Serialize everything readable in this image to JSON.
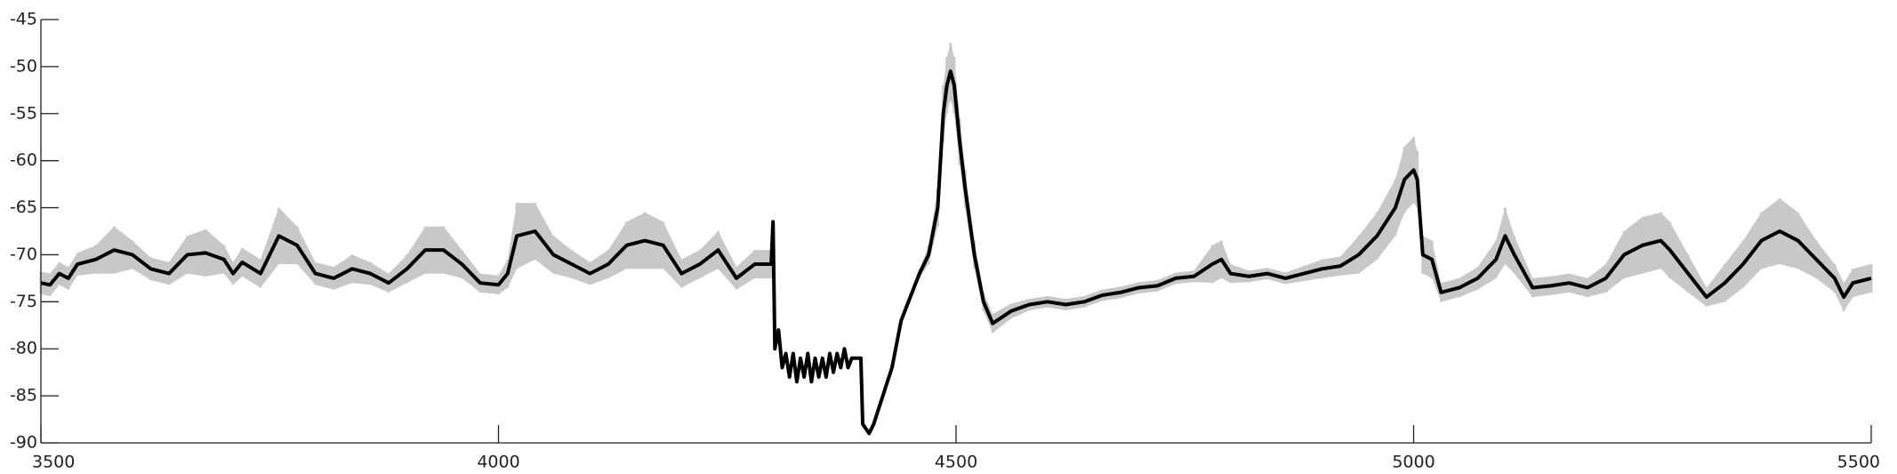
{
  "chart_data": {
    "type": "line",
    "x": [
      3500,
      3510,
      3520,
      3530,
      3540,
      3560,
      3580,
      3600,
      3620,
      3640,
      3660,
      3680,
      3700,
      3710,
      3720,
      3740,
      3760,
      3780,
      3800,
      3820,
      3840,
      3860,
      3880,
      3900,
      3920,
      3940,
      3960,
      3980,
      4000,
      4010,
      4020,
      4040,
      4060,
      4080,
      4100,
      4120,
      4140,
      4160,
      4180,
      4200,
      4220,
      4240,
      4260,
      4280,
      4298,
      4300,
      4302,
      4306,
      4310,
      4314,
      4318,
      4322,
      4326,
      4330,
      4334,
      4338,
      4342,
      4346,
      4350,
      4354,
      4358,
      4362,
      4366,
      4370,
      4374,
      4378,
      4382,
      4386,
      4396,
      4398,
      4405,
      4410,
      4420,
      4430,
      4440,
      4460,
      4470,
      4480,
      4486,
      4490,
      4494,
      4498,
      4504,
      4510,
      4520,
      4530,
      4540,
      4560,
      4580,
      4600,
      4620,
      4640,
      4660,
      4680,
      4700,
      4720,
      4740,
      4760,
      4780,
      4790,
      4800,
      4820,
      4840,
      4860,
      4880,
      4900,
      4920,
      4940,
      4960,
      4980,
      4990,
      5000,
      5004,
      5010,
      5020,
      5030,
      5050,
      5070,
      5090,
      5100,
      5110,
      5130,
      5150,
      5170,
      5190,
      5210,
      5230,
      5250,
      5270,
      5280,
      5300,
      5320,
      5340,
      5360,
      5380,
      5400,
      5420,
      5440,
      5460,
      5470,
      5480,
      5500
    ],
    "series": [
      {
        "color": "#000000",
        "band_color": "#c8c8c8",
        "values": [
          -73,
          -73.2,
          -72,
          -72.5,
          -71,
          -70.5,
          -69.5,
          -70,
          -71.5,
          -72,
          -70,
          -69.8,
          -70.5,
          -72,
          -70.8,
          -72,
          -68,
          -69,
          -72,
          -72.5,
          -71.5,
          -72,
          -73,
          -71.5,
          -69.5,
          -69.5,
          -71,
          -73,
          -73.2,
          -72,
          -68,
          -67.5,
          -70,
          -71,
          -72,
          -71,
          -69,
          -68.5,
          -69,
          -72,
          -71,
          -69.5,
          -72.5,
          -71,
          -71,
          -66.5,
          -80,
          -78,
          -82,
          -80.5,
          -83,
          -80.5,
          -83.5,
          -81,
          -83,
          -80.5,
          -83.5,
          -81,
          -83,
          -81,
          -83,
          -80.5,
          -82.5,
          -80.5,
          -82,
          -80,
          -82,
          -81,
          -81,
          -88,
          -89,
          -88,
          -85,
          -82,
          -77,
          -72,
          -70,
          -65,
          -55,
          -52,
          -50.5,
          -52,
          -58,
          -63,
          -70,
          -75,
          -77.3,
          -76,
          -75.3,
          -75,
          -75.3,
          -75,
          -74.3,
          -74,
          -73.5,
          -73.3,
          -72.5,
          -72.3,
          -71,
          -70.5,
          -72,
          -72.3,
          -72,
          -72.5,
          -72,
          -71.5,
          -71.2,
          -70,
          -68,
          -65,
          -62,
          -61,
          -62,
          -70,
          -70.5,
          -74,
          -73.5,
          -72.5,
          -70.5,
          -68,
          -70,
          -73.5,
          -73.3,
          -73,
          -73.5,
          -72.5,
          -70,
          -69,
          -68.5,
          -69.5,
          -72,
          -74.5,
          -73,
          -71,
          -68.5,
          -67.5,
          -68.5,
          -70.5,
          -72.5,
          -74.5,
          -73,
          -72.5
        ],
        "errors": [
          1.2,
          1.2,
          1.2,
          1.2,
          1.2,
          1.5,
          2.5,
          1.5,
          1.2,
          1.2,
          2,
          2.5,
          1.5,
          1.2,
          1.5,
          1.5,
          3,
          2,
          1.2,
          1.2,
          1.5,
          1.2,
          1,
          1.5,
          2.5,
          2.5,
          1.5,
          1,
          1,
          1.5,
          3.5,
          3,
          2,
          1.5,
          1.2,
          1.5,
          2.5,
          3,
          2.5,
          1.5,
          1.5,
          2,
          1.2,
          1.5,
          1.5,
          0,
          0,
          0,
          0,
          0,
          0,
          0,
          0,
          0,
          0,
          0,
          0,
          0,
          0,
          0,
          0,
          0,
          0,
          0,
          0,
          0,
          0,
          0,
          0,
          0,
          0,
          0,
          0,
          0,
          0,
          0.5,
          1,
          2,
          3,
          3,
          3,
          3,
          2.5,
          2,
          1.5,
          1,
          1,
          0.8,
          0.6,
          0.6,
          0.6,
          0.6,
          0.6,
          0.6,
          0.6,
          0.6,
          0.6,
          0.6,
          2,
          2,
          1,
          0.6,
          0.6,
          0.6,
          0.8,
          1,
          1,
          2,
          2.5,
          3,
          3.5,
          3.5,
          3,
          2,
          2,
          1,
          1,
          1.2,
          2,
          3,
          2,
          1,
          1,
          1,
          1,
          1.5,
          2.5,
          3,
          3,
          3,
          2,
          1,
          2,
          2.5,
          3,
          3.5,
          3,
          2,
          1.5,
          1.5,
          1.5,
          1.5
        ]
      }
    ],
    "xlim": [
      3500,
      5500
    ],
    "xticks": [
      3500,
      4000,
      4500,
      5000,
      5500
    ],
    "ylim": [
      -90,
      -45
    ],
    "yticks": [
      -90,
      -85,
      -80,
      -75,
      -70,
      -65,
      -60,
      -55,
      -50,
      -45
    ],
    "grid": false
  }
}
